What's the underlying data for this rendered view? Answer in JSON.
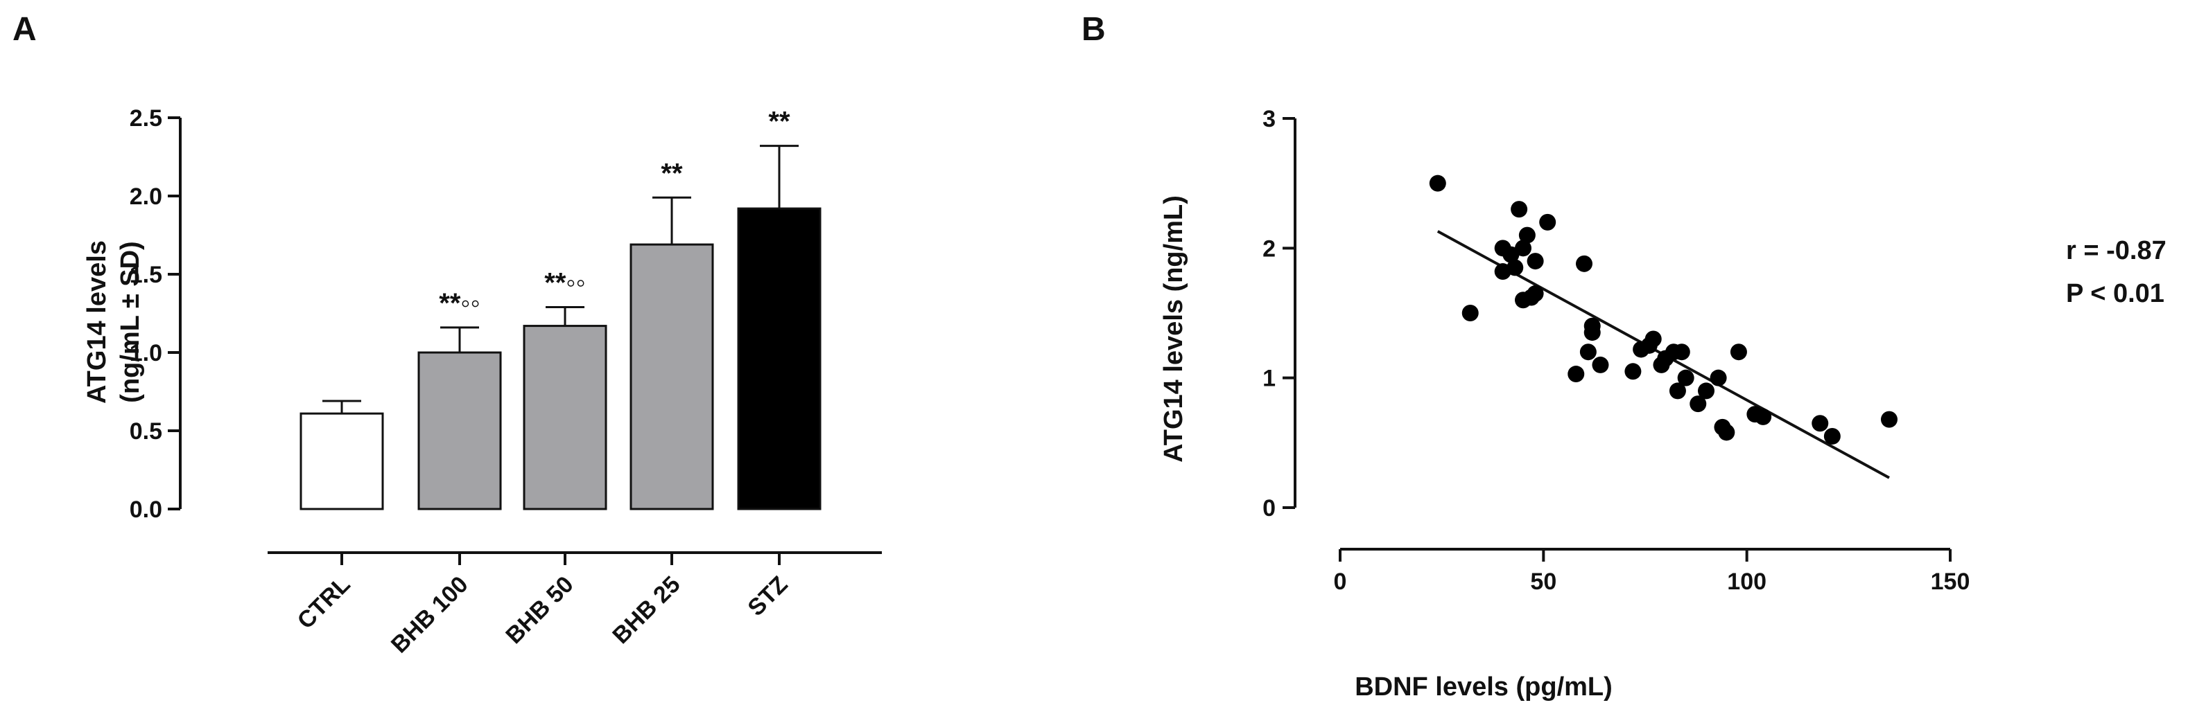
{
  "chart_data": [
    {
      "panel": "A",
      "type": "bar",
      "categories": [
        "CTRL",
        "BHB 100",
        "BHB 50",
        "BHB 25",
        "STZ"
      ],
      "values": [
        0.61,
        1.0,
        1.17,
        1.69,
        1.92
      ],
      "errors": [
        0.08,
        0.16,
        0.12,
        0.3,
        0.4
      ],
      "annotations": [
        "",
        "**◦◦",
        "**◦◦",
        "**",
        "**"
      ],
      "bar_colors": [
        "#ffffff",
        "#a3a3a6",
        "#a3a3a6",
        "#a3a3a6",
        "#000000"
      ],
      "ylabel": "ATG14 levels",
      "ylabel_unit": "(ng/mL ± SD)",
      "xlabel": "",
      "ylim": [
        0,
        2.5
      ],
      "yticks": [
        "0.0",
        "0.5",
        "1.0",
        "1.5",
        "2.0",
        "2.5"
      ],
      "grid": false
    },
    {
      "panel": "B",
      "type": "scatter",
      "xlabel": "BDNF levels (pg/mL)",
      "ylabel": "ATG14 levels (ng/mL)",
      "xlim": [
        0,
        150
      ],
      "ylim": [
        0,
        3
      ],
      "xticks": [
        "0",
        "50",
        "100",
        "150"
      ],
      "yticks": [
        "0",
        "1",
        "2",
        "3"
      ],
      "points": [
        [
          24,
          2.5
        ],
        [
          32,
          1.5
        ],
        [
          40,
          2.0
        ],
        [
          40,
          1.82
        ],
        [
          42,
          1.95
        ],
        [
          43,
          1.85
        ],
        [
          44,
          2.3
        ],
        [
          45,
          2.0
        ],
        [
          45,
          1.6
        ],
        [
          46,
          2.1
        ],
        [
          47,
          1.62
        ],
        [
          48,
          1.9
        ],
        [
          48,
          1.65
        ],
        [
          51,
          2.2
        ],
        [
          58,
          1.03
        ],
        [
          60,
          1.88
        ],
        [
          61,
          1.2
        ],
        [
          62,
          1.4
        ],
        [
          62,
          1.35
        ],
        [
          64,
          1.1
        ],
        [
          72,
          1.05
        ],
        [
          74,
          1.22
        ],
        [
          76,
          1.25
        ],
        [
          77,
          1.3
        ],
        [
          79,
          1.1
        ],
        [
          80,
          1.15
        ],
        [
          82,
          1.2
        ],
        [
          83,
          0.9
        ],
        [
          84,
          1.2
        ],
        [
          85,
          1.0
        ],
        [
          88,
          0.8
        ],
        [
          90,
          0.9
        ],
        [
          93,
          1.0
        ],
        [
          94,
          0.62
        ],
        [
          95,
          0.58
        ],
        [
          98,
          1.2
        ],
        [
          102,
          0.72
        ],
        [
          104,
          0.7
        ],
        [
          118,
          0.65
        ],
        [
          121,
          0.55
        ],
        [
          135,
          0.68
        ]
      ],
      "fit": {
        "x": [
          24,
          135
        ],
        "y": [
          2.13,
          0.23
        ]
      },
      "stats": [
        "r = -0.87",
        "P < 0.01"
      ],
      "grid": false
    }
  ]
}
